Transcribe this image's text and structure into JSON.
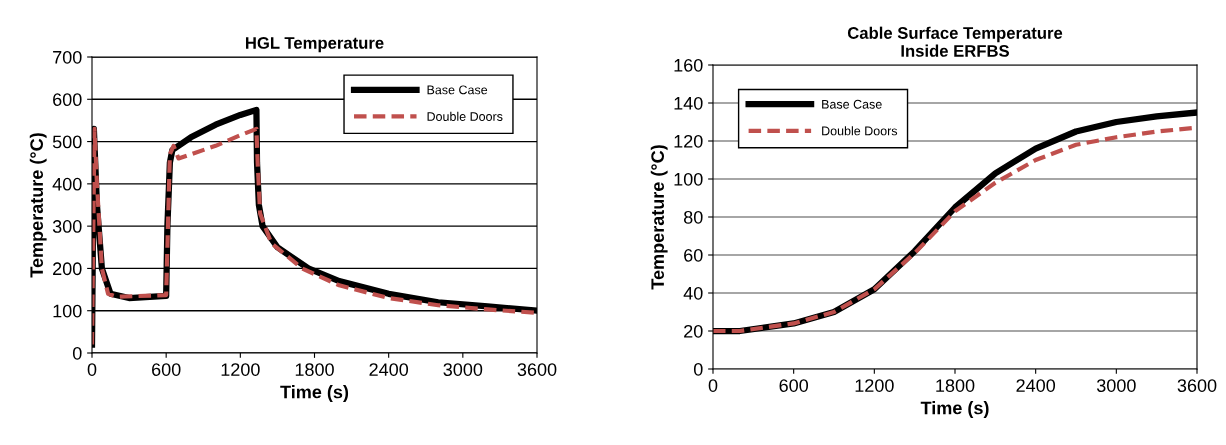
{
  "chart_data": [
    {
      "type": "line",
      "title": "HGL Temperature",
      "xlabel": "Time (s)",
      "ylabel": "Temperature (°C)",
      "xlim": [
        0,
        3600
      ],
      "xticks": [
        0,
        600,
        1200,
        1800,
        2400,
        3000,
        3600
      ],
      "ylim": [
        0,
        700
      ],
      "yticks": [
        0,
        100,
        200,
        300,
        400,
        500,
        600,
        700
      ],
      "grid": "y",
      "legend": "top right",
      "series": [
        {
          "name": "Base Case",
          "color": "#000000",
          "line_style": "solid",
          "x": [
            0,
            15,
            40,
            80,
            150,
            300,
            600,
            610,
            630,
            650,
            800,
            1000,
            1200,
            1330,
            1335,
            1350,
            1380,
            1500,
            1750,
            2000,
            2400,
            2800,
            3200,
            3600
          ],
          "values": [
            20,
            530,
            350,
            200,
            140,
            130,
            135,
            300,
            450,
            480,
            510,
            540,
            563,
            575,
            450,
            350,
            300,
            250,
            200,
            170,
            140,
            120,
            110,
            100
          ]
        },
        {
          "name": "Double Doors",
          "color": "#c0504d",
          "line_style": "dashed",
          "x": [
            0,
            20,
            40,
            80,
            130,
            200,
            600,
            610,
            630,
            660,
            700,
            1000,
            1200,
            1330,
            1340,
            1360,
            1450,
            1700,
            2000,
            2400,
            2800,
            3200,
            3600
          ],
          "values": [
            20,
            530,
            400,
            200,
            140,
            133,
            137,
            250,
            470,
            490,
            460,
            490,
            515,
            530,
            450,
            330,
            260,
            200,
            160,
            130,
            113,
            103,
            95
          ]
        }
      ]
    },
    {
      "type": "line",
      "title": "Cable Surface Temperature\nInside ERFBS",
      "xlabel": "Time (s)",
      "ylabel": "Temperature (°C)",
      "xlim": [
        0,
        3600
      ],
      "xticks": [
        0,
        600,
        1200,
        1800,
        2400,
        3000,
        3600
      ],
      "ylim": [
        0,
        160
      ],
      "yticks": [
        0,
        20,
        40,
        60,
        80,
        100,
        120,
        140,
        160
      ],
      "grid": "y",
      "legend": "top left",
      "series": [
        {
          "name": "Base Case",
          "color": "#000000",
          "line_style": "solid",
          "x": [
            0,
            200,
            600,
            900,
            1200,
            1500,
            1800,
            2100,
            2400,
            2700,
            3000,
            3300,
            3600
          ],
          "values": [
            20,
            20,
            24,
            30,
            42,
            62,
            85,
            103,
            116,
            125,
            130,
            133,
            135
          ]
        },
        {
          "name": "Double Doors",
          "color": "#c0504d",
          "line_style": "dashed",
          "x": [
            0,
            200,
            600,
            900,
            1200,
            1500,
            1800,
            2100,
            2400,
            2700,
            3000,
            3300,
            3600
          ],
          "values": [
            20,
            20,
            24,
            30,
            42,
            61,
            83,
            98,
            110,
            118,
            122,
            125,
            127
          ]
        }
      ]
    }
  ]
}
